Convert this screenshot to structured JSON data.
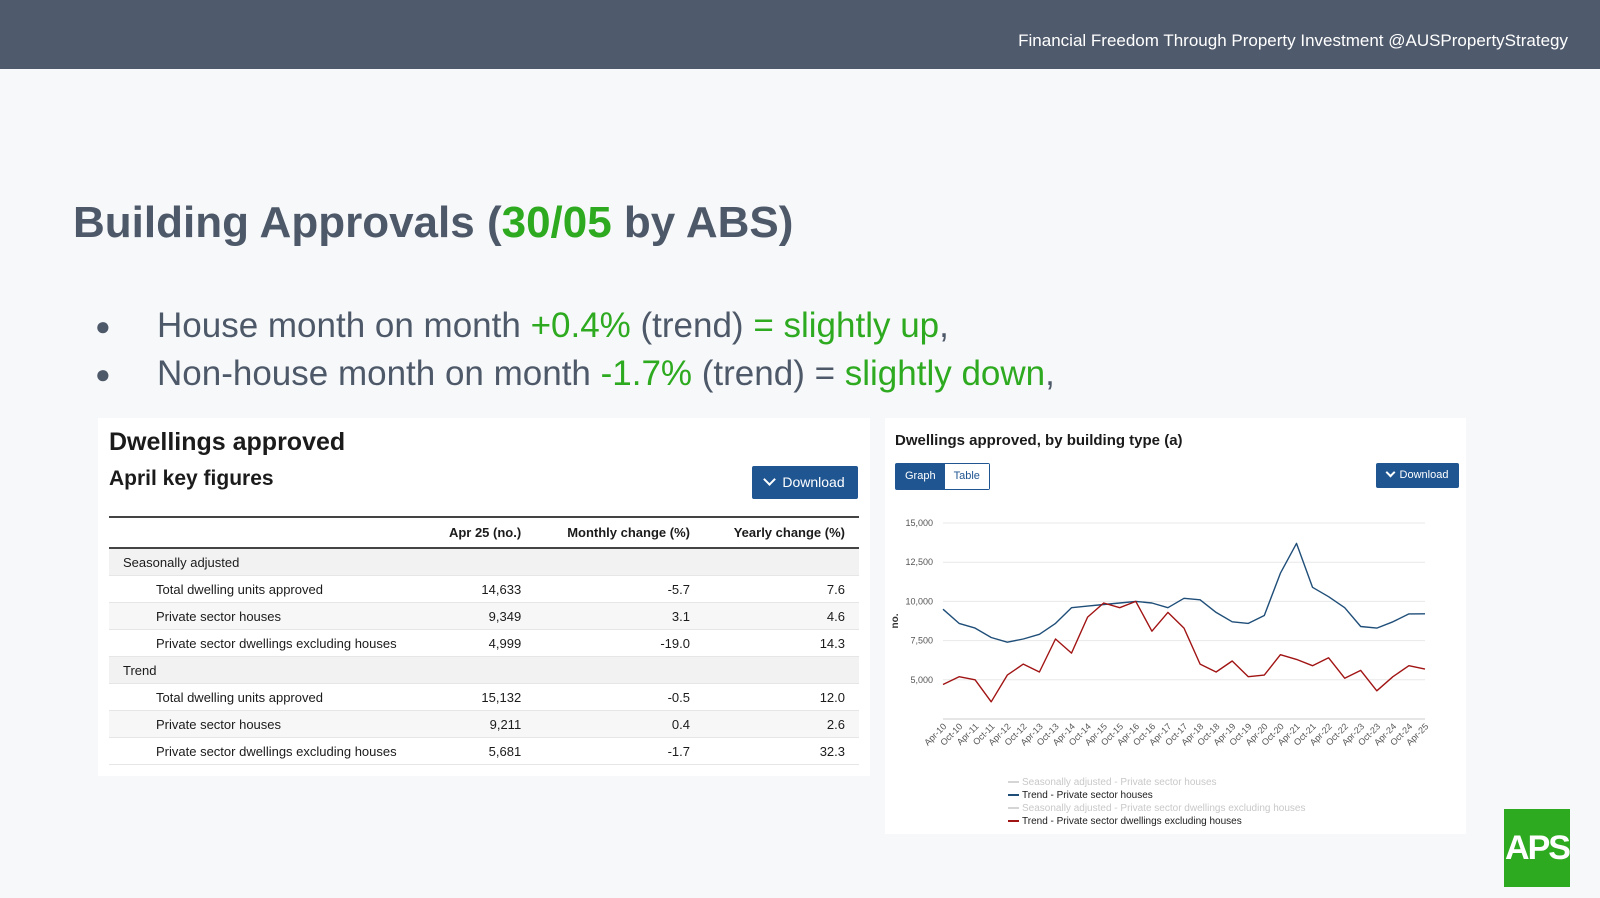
{
  "header": {
    "tagline": "Financial Freedom Through Property Investment @AUSPropertyStrategy"
  },
  "title": {
    "pre": "Building Approvals (",
    "date": "30/05",
    "post": " by ABS)"
  },
  "bullets": [
    {
      "dot": "●",
      "a": "House month on month ",
      "b": "+0.4%",
      "c": " (trend) ",
      "d": "= slightly up",
      "e": ","
    },
    {
      "dot": "●",
      "a": "Non-house month on month ",
      "b": "-1.7%",
      "c": " (trend) = ",
      "d": "slightly down",
      "e": ","
    }
  ],
  "key_figures": {
    "title": "Dwellings approved",
    "subtitle": "April key figures",
    "download_label": "Download",
    "columns": [
      "",
      "Apr 25 (no.)",
      "Monthly change (%)",
      "Yearly change (%)"
    ],
    "groups": [
      {
        "label": "Seasonally adjusted",
        "rows": [
          [
            "Total dwelling units approved",
            "14,633",
            "-5.7",
            "7.6"
          ],
          [
            "Private sector houses",
            "9,349",
            "3.1",
            "4.6"
          ],
          [
            "Private sector dwellings excluding houses",
            "4,999",
            "-19.0",
            "14.3"
          ]
        ]
      },
      {
        "label": "Trend",
        "rows": [
          [
            "Total dwelling units approved",
            "15,132",
            "-0.5",
            "12.0"
          ],
          [
            "Private sector houses",
            "9,211",
            "0.4",
            "2.6"
          ],
          [
            "Private sector dwellings excluding houses",
            "5,681",
            "-1.7",
            "32.3"
          ]
        ]
      }
    ]
  },
  "chart_panel": {
    "title": "Dwellings approved, by building type (a)",
    "toggle": {
      "graph": "Graph",
      "table": "Table"
    },
    "download_label": "Download"
  },
  "chart_data": {
    "type": "line",
    "title": "Dwellings approved, by building type (a)",
    "ylabel": "no.",
    "ylim": [
      2500,
      15000
    ],
    "yticks": [
      5000,
      7500,
      10000,
      12500,
      15000
    ],
    "ytick_labels": [
      "5,000",
      "7,500",
      "10,000",
      "12,500",
      "15,000"
    ],
    "x_labels": [
      "Apr-10",
      "Oct-10",
      "Apr-11",
      "Oct-11",
      "Apr-12",
      "Oct-12",
      "Apr-13",
      "Oct-13",
      "Apr-14",
      "Oct-14",
      "Apr-15",
      "Oct-15",
      "Apr-16",
      "Oct-16",
      "Apr-17",
      "Oct-17",
      "Apr-18",
      "Oct-18",
      "Apr-19",
      "Oct-19",
      "Apr-20",
      "Oct-20",
      "Apr-21",
      "Oct-21",
      "Apr-22",
      "Oct-22",
      "Apr-23",
      "Oct-23",
      "Apr-24",
      "Oct-24",
      "Apr-25"
    ],
    "grid": true,
    "legend_position": "bottom",
    "series": [
      {
        "name": "Seasonally adjusted - Private sector houses",
        "color": "#cfcfcf",
        "visible": false,
        "values": []
      },
      {
        "name": "Trend - Private sector houses",
        "color": "#1f4e79",
        "visible": true,
        "values": [
          9500,
          8600,
          8300,
          7700,
          7400,
          7600,
          7900,
          8600,
          9600,
          9700,
          9800,
          9900,
          10000,
          9900,
          9600,
          10200,
          10100,
          9300,
          8700,
          8600,
          9100,
          11800,
          13700,
          10900,
          10300,
          9600,
          8400,
          8300,
          8700,
          9200,
          9211
        ]
      },
      {
        "name": "Seasonally adjusted - Private sector dwellings excluding houses",
        "color": "#cfcfcf",
        "visible": false,
        "values": []
      },
      {
        "name": "Trend - Private sector dwellings excluding houses",
        "color": "#a11414",
        "visible": true,
        "values": [
          4700,
          5200,
          5000,
          3600,
          5300,
          6000,
          5500,
          7600,
          6700,
          9000,
          9900,
          9600,
          10000,
          8100,
          9300,
          8300,
          6000,
          5500,
          6200,
          5200,
          5300,
          6600,
          6300,
          5900,
          6400,
          5100,
          5600,
          4300,
          5200,
          5900,
          5681
        ]
      }
    ]
  },
  "logo": {
    "text": "APS"
  }
}
